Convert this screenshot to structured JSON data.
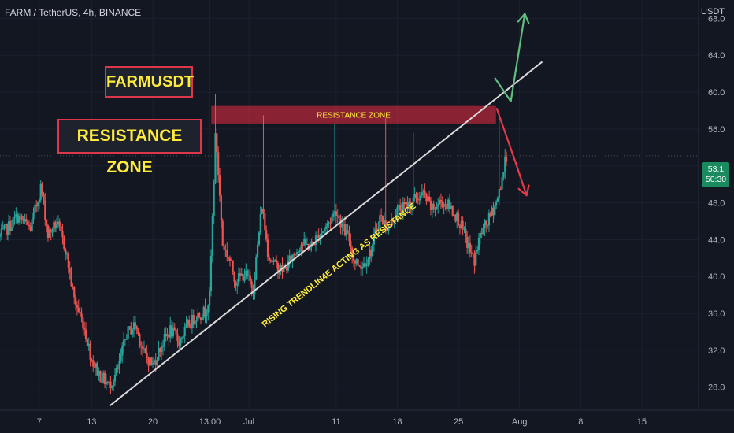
{
  "header": {
    "symbol_line": "FARM / TetherUS, 4h, BINANCE",
    "unit": "USDT"
  },
  "annotations": {
    "title_box": "FARMUSDT",
    "zone_box": "RESISTANCE ZONE",
    "zone_inner_label": "RESISTANCE ZONE",
    "trendline_label": "RISING TRENDLIN4E ACTING AS RESISTANCE"
  },
  "price_badge": {
    "price": "53.1",
    "countdown": "50:30"
  },
  "colors": {
    "background": "#131722",
    "bull": "#26a69a",
    "bear": "#ef5350",
    "zone": "#b2283b",
    "label_text": "#ffeb3b",
    "label_border": "#e0364a",
    "trendline": "#d9d9d9",
    "up_arrow": "#5fbf7f",
    "down_arrow": "#e8394a"
  },
  "chart_data": {
    "type": "candlestick",
    "symbol": "FARM / TetherUS",
    "timeframe": "4h",
    "exchange": "BINANCE",
    "y_axis": {
      "unit": "USDT",
      "ticks": [
        28.0,
        32.0,
        36.0,
        40.0,
        44.0,
        48.0,
        52.0,
        56.0,
        60.0,
        64.0,
        68.0
      ],
      "tick_labels": [
        "28.0",
        "32.0",
        "36.0",
        "40.0",
        "44.0",
        "48.0",
        "52.0",
        "56.0",
        "60.0",
        "64.0",
        "68.0"
      ],
      "range": [
        25.5,
        70.0
      ]
    },
    "x_axis": {
      "tick_labels": [
        "7",
        "13",
        "20",
        "13:00",
        "Jul",
        "11",
        "18",
        "25",
        "Aug",
        "8",
        "15"
      ],
      "tick_days": [
        7,
        13,
        20,
        26.54,
        31,
        41,
        48,
        55,
        62,
        69,
        76
      ],
      "range_days": [
        2.5,
        82.5
      ]
    },
    "price_path": [
      [
        2.5,
        44.3
      ],
      [
        4.5,
        46.5
      ],
      [
        6.0,
        45.2
      ],
      [
        7.2,
        49.8
      ],
      [
        8.0,
        44.5
      ],
      [
        9.0,
        45.8
      ],
      [
        10.0,
        43.0
      ],
      [
        11.0,
        37.5
      ],
      [
        12.0,
        35.0
      ],
      [
        13.0,
        31.0
      ],
      [
        14.0,
        29.2
      ],
      [
        15.0,
        28.2
      ],
      [
        16.0,
        29.8
      ],
      [
        17.0,
        33.8
      ],
      [
        18.0,
        34.8
      ],
      [
        19.0,
        31.6
      ],
      [
        20.0,
        30.4
      ],
      [
        21.0,
        32.6
      ],
      [
        22.0,
        34.2
      ],
      [
        23.0,
        33.0
      ],
      [
        24.0,
        34.6
      ],
      [
        25.0,
        35.8
      ],
      [
        26.0,
        36.2
      ],
      [
        26.5,
        37.8
      ],
      [
        27.2,
        55.8
      ],
      [
        28.0,
        43.5
      ],
      [
        28.8,
        41.8
      ],
      [
        29.5,
        39.5
      ],
      [
        30.5,
        40.3
      ],
      [
        31.5,
        38.8
      ],
      [
        32.5,
        47.8
      ],
      [
        33.2,
        42.5
      ],
      [
        34.0,
        41.2
      ],
      [
        35.0,
        40.6
      ],
      [
        36.0,
        42.2
      ],
      [
        37.0,
        43.6
      ],
      [
        38.0,
        43.2
      ],
      [
        39.0,
        44.5
      ],
      [
        40.0,
        45.6
      ],
      [
        41.0,
        47.2
      ],
      [
        41.8,
        45.2
      ],
      [
        42.5,
        44.0
      ],
      [
        43.0,
        41.8
      ],
      [
        44.0,
        41.2
      ],
      [
        45.0,
        42.8
      ],
      [
        46.0,
        46.5
      ],
      [
        47.0,
        45.2
      ],
      [
        48.0,
        47.2
      ],
      [
        49.0,
        47.6
      ],
      [
        50.0,
        48.4
      ],
      [
        51.0,
        48.9
      ],
      [
        52.0,
        47.2
      ],
      [
        53.0,
        48.2
      ],
      [
        54.0,
        47.6
      ],
      [
        55.0,
        46.2
      ],
      [
        56.0,
        43.6
      ],
      [
        56.8,
        41.6
      ],
      [
        57.5,
        44.5
      ],
      [
        58.5,
        46.2
      ],
      [
        59.5,
        48.5
      ],
      [
        60.0,
        50.8
      ],
      [
        60.5,
        53.1
      ]
    ],
    "spike_wicks": [
      {
        "day": 27.2,
        "high": 59.8
      },
      {
        "day": 32.6,
        "high": 57.5
      },
      {
        "day": 40.9,
        "high": 56.6
      },
      {
        "day": 46.6,
        "high": 57.2
      },
      {
        "day": 49.8,
        "high": 55.6
      },
      {
        "day": 59.7,
        "high": 57.5
      }
    ],
    "resistance_zone": {
      "label": "RESISTANCE ZONE",
      "low": 56.6,
      "high": 58.5,
      "start_day": 26.7,
      "end_day": 59.3
    },
    "trendline": {
      "start": [
        15.1,
        26.0
      ],
      "end": [
        64.6,
        63.3
      ],
      "label": "RISING TRENDLIN4E ACTING AS RESISTANCE"
    },
    "up_arrow_path": [
      [
        59.2,
        61.5
      ],
      [
        61.0,
        59.0
      ],
      [
        62.6,
        68.5
      ]
    ],
    "down_arrow_path": [
      [
        59.4,
        58.2
      ],
      [
        61.5,
        52.5
      ],
      [
        62.8,
        48.8
      ]
    ],
    "last_price": 53.1,
    "countdown": "50:30"
  }
}
